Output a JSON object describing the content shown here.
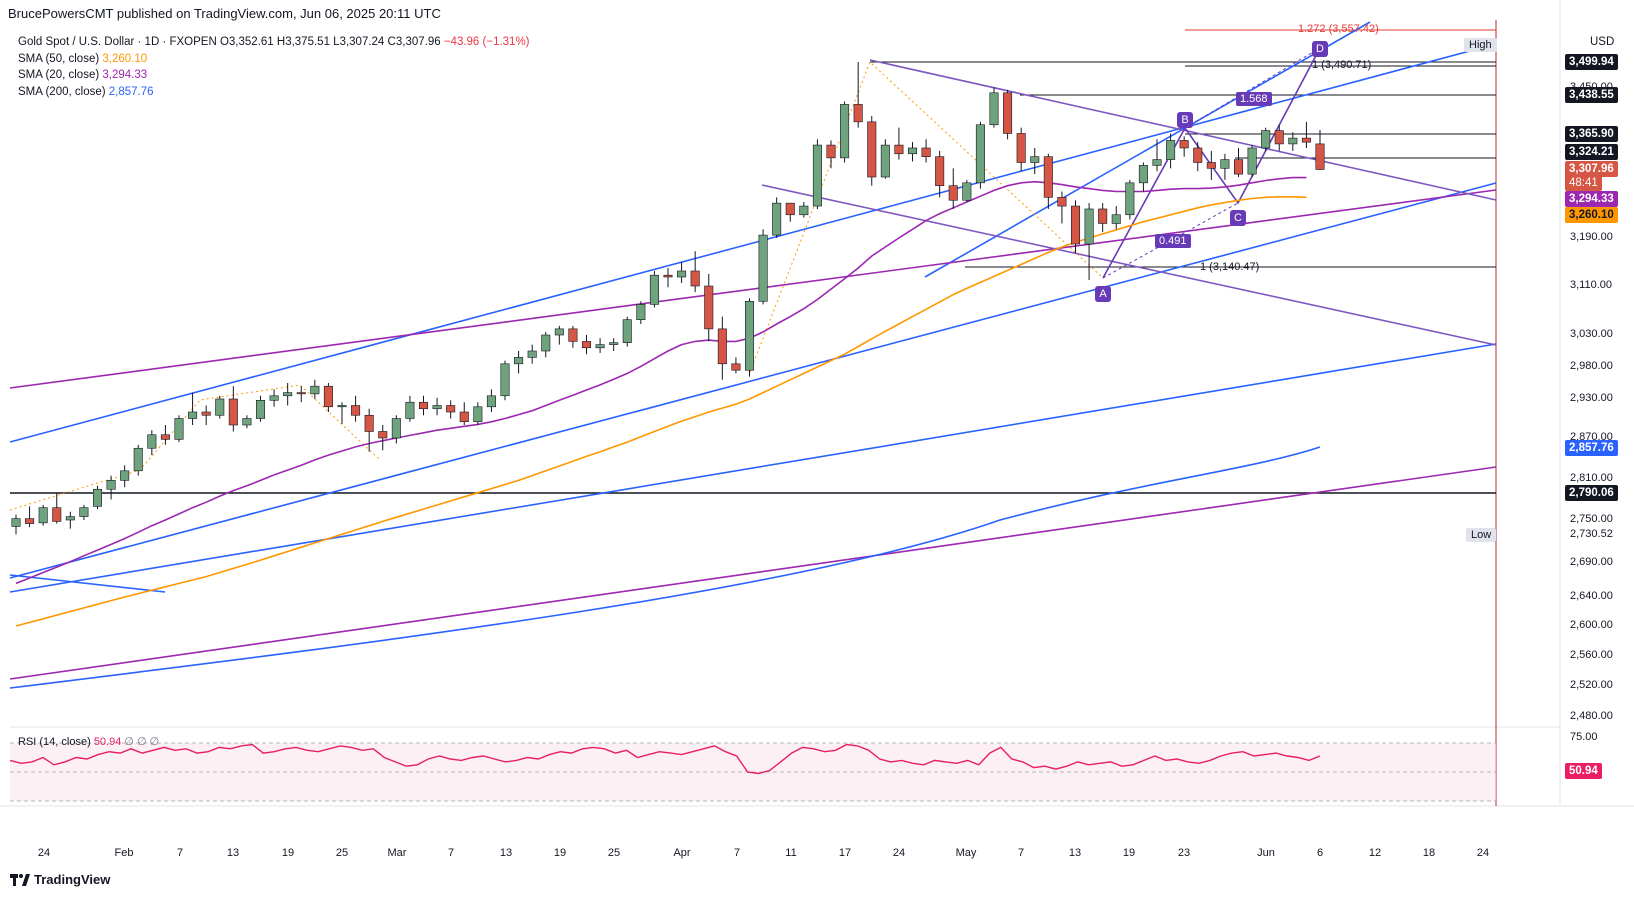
{
  "header": {
    "publisher": "BrucePowersCMT published on TradingView.com, Jun 06, 2025 20:11 UTC"
  },
  "legend": {
    "symbol": "Gold Spot / U.S. Dollar · 1D · FXOPEN",
    "open": "O3,352.61",
    "high": "H3,375.51",
    "low": "L3,307.24",
    "close": "C3,307.96",
    "change": "−43.96 (−1.31%)",
    "sma50_label": "SMA (50, close)",
    "sma50_value": "3,260.10",
    "sma20_label": "SMA (20, close)",
    "sma20_value": "3,294.33",
    "sma200_label": "SMA (200, close)",
    "sma200_value": "2,857.76"
  },
  "currency": "USD",
  "high_chip": "High",
  "low_chip": "Low",
  "low_value": "2,730.52",
  "price_axis_ticks": [
    "3,190.00",
    "3,110.00",
    "3,030.00",
    "2,980.00",
    "2,930.00",
    "2,870.00",
    "2,810.00",
    "2,750.00",
    "2,690.00",
    "2,640.00",
    "2,600.00",
    "2,560.00",
    "2,520.00",
    "2,480.00",
    "3,450.00"
  ],
  "price_boxes": {
    "p3499": "3,499.94",
    "p3438": "3,438.55",
    "p3365": "3,365.90",
    "p3324": "3,324.21",
    "last": "3,307.96",
    "countdown": "48:41",
    "sma20": "3,294.33",
    "sma50": "3,260.10",
    "sma200": "2,857.76",
    "p2790": "2,790.06"
  },
  "rsi": {
    "label": "RSI (14, close)",
    "value": "50.94",
    "placeholders": "∅ ∅ ∅",
    "tick75": "75.00",
    "box": "50.94",
    "upper": 70,
    "lower": 30,
    "ymin": 20,
    "ymax": 85,
    "values": [
      58,
      56,
      57,
      60,
      55,
      57,
      60,
      59,
      62,
      64,
      63,
      66,
      63,
      65,
      67,
      65,
      66,
      63,
      64,
      67,
      66,
      68,
      69,
      63,
      64,
      66,
      67,
      65,
      64,
      66,
      68,
      67,
      65,
      66,
      60,
      57,
      54,
      55,
      59,
      61,
      59,
      58,
      60,
      61,
      59,
      57,
      58,
      60,
      59,
      62,
      64,
      63,
      66,
      67,
      66,
      63,
      65,
      60,
      62,
      64,
      63,
      62,
      64,
      66,
      68,
      64,
      61,
      50,
      49,
      51,
      57,
      63,
      67,
      66,
      64,
      65,
      69,
      68,
      65,
      59,
      57,
      58,
      56,
      55,
      58,
      57,
      56,
      58,
      55,
      63,
      67,
      59,
      57,
      53,
      54,
      52,
      54,
      57,
      55,
      56,
      57,
      54,
      55,
      58,
      61,
      58,
      59,
      57,
      56,
      58,
      61,
      63,
      64,
      61,
      62,
      63,
      61,
      60,
      58,
      61
    ]
  },
  "fib": {
    "level_1272": "1.272 (3,557.42)",
    "level_1": "1 (3,140.47)",
    "level_1b": "1 (3,490.71)",
    "ratio1": "1.568",
    "ratio2": "0.491"
  },
  "wave_labels": {
    "A": "A",
    "B": "B",
    "C": "C",
    "D": "D"
  },
  "x_axis": [
    "24",
    "Feb",
    "7",
    "13",
    "19",
    "25",
    "Mar",
    "7",
    "13",
    "19",
    "25",
    "Apr",
    "7",
    "11",
    "17",
    "24",
    "May",
    "7",
    "13",
    "19",
    "23",
    "Jun",
    "6",
    "12",
    "18",
    "24"
  ],
  "footer": {
    "brand": "TradingView"
  },
  "colors": {
    "up": "#6fa37d",
    "down": "#d65646",
    "sma20": "#9c27b0",
    "sma50": "#ff9800",
    "sma200": "#2962ff",
    "trend_purple": "#7e57c2",
    "rsi": "#e91e63"
  },
  "chart_data": {
    "type": "candlestick",
    "title": "Gold Spot / U.S. Dollar · 1D · FXOPEN",
    "ylim": [
      2460,
      3580
    ],
    "candles": [
      [
        2741,
        2758,
        2730,
        2752
      ],
      [
        2752,
        2770,
        2740,
        2745
      ],
      [
        2746,
        2772,
        2742,
        2768
      ],
      [
        2768,
        2790,
        2745,
        2748
      ],
      [
        2750,
        2762,
        2738,
        2755
      ],
      [
        2755,
        2772,
        2750,
        2768
      ],
      [
        2770,
        2800,
        2766,
        2795
      ],
      [
        2795,
        2815,
        2780,
        2808
      ],
      [
        2808,
        2830,
        2798,
        2822
      ],
      [
        2822,
        2860,
        2815,
        2855
      ],
      [
        2855,
        2882,
        2845,
        2875
      ],
      [
        2875,
        2890,
        2860,
        2868
      ],
      [
        2868,
        2905,
        2864,
        2900
      ],
      [
        2900,
        2940,
        2890,
        2910
      ],
      [
        2910,
        2920,
        2890,
        2905
      ],
      [
        2905,
        2935,
        2900,
        2930
      ],
      [
        2930,
        2950,
        2880,
        2890
      ],
      [
        2890,
        2905,
        2885,
        2900
      ],
      [
        2900,
        2935,
        2895,
        2928
      ],
      [
        2928,
        2945,
        2918,
        2935
      ],
      [
        2935,
        2955,
        2920,
        2940
      ],
      [
        2940,
        2950,
        2925,
        2938
      ],
      [
        2938,
        2960,
        2930,
        2950
      ],
      [
        2950,
        2955,
        2910,
        2918
      ],
      [
        2918,
        2925,
        2892,
        2920
      ],
      [
        2920,
        2935,
        2895,
        2905
      ],
      [
        2905,
        2915,
        2850,
        2880
      ],
      [
        2880,
        2890,
        2852,
        2870
      ],
      [
        2870,
        2905,
        2862,
        2900
      ],
      [
        2900,
        2935,
        2895,
        2925
      ],
      [
        2925,
        2935,
        2905,
        2915
      ],
      [
        2915,
        2932,
        2905,
        2920
      ],
      [
        2920,
        2928,
        2900,
        2910
      ],
      [
        2910,
        2925,
        2890,
        2895
      ],
      [
        2895,
        2925,
        2890,
        2918
      ],
      [
        2918,
        2945,
        2910,
        2935
      ],
      [
        2935,
        2990,
        2928,
        2985
      ],
      [
        2985,
        3005,
        2970,
        2995
      ],
      [
        2995,
        3015,
        2985,
        3005
      ],
      [
        3005,
        3035,
        2995,
        3030
      ],
      [
        3030,
        3045,
        3015,
        3040
      ],
      [
        3040,
        3045,
        3010,
        3020
      ],
      [
        3020,
        3030,
        3000,
        3010
      ],
      [
        3010,
        3025,
        3002,
        3015
      ],
      [
        3015,
        3025,
        3005,
        3018
      ],
      [
        3018,
        3060,
        3012,
        3055
      ],
      [
        3055,
        3085,
        3048,
        3080
      ],
      [
        3080,
        3135,
        3075,
        3128
      ],
      [
        3128,
        3140,
        3108,
        3125
      ],
      [
        3125,
        3150,
        3115,
        3135
      ],
      [
        3135,
        3168,
        3100,
        3110
      ],
      [
        3110,
        3130,
        3020,
        3040
      ],
      [
        3040,
        3060,
        2960,
        2985
      ],
      [
        2985,
        2995,
        2970,
        2975
      ],
      [
        2975,
        3090,
        2965,
        3085
      ],
      [
        3085,
        3205,
        3080,
        3195
      ],
      [
        3195,
        3260,
        3190,
        3250
      ],
      [
        3250,
        3245,
        3218,
        3230
      ],
      [
        3230,
        3252,
        3225,
        3245
      ],
      [
        3245,
        3360,
        3240,
        3350
      ],
      [
        3350,
        3358,
        3310,
        3328
      ],
      [
        3328,
        3425,
        3320,
        3420
      ],
      [
        3420,
        3500,
        3380,
        3390
      ],
      [
        3390,
        3400,
        3280,
        3295
      ],
      [
        3295,
        3360,
        3292,
        3350
      ],
      [
        3350,
        3380,
        3325,
        3335
      ],
      [
        3335,
        3355,
        3322,
        3345
      ],
      [
        3345,
        3360,
        3320,
        3330
      ],
      [
        3330,
        3340,
        3260,
        3280
      ],
      [
        3280,
        3310,
        3240,
        3255
      ],
      [
        3255,
        3290,
        3252,
        3285
      ],
      [
        3285,
        3390,
        3275,
        3385
      ],
      [
        3385,
        3450,
        3380,
        3440
      ],
      [
        3440,
        3445,
        3360,
        3370
      ],
      [
        3370,
        3380,
        3305,
        3320
      ],
      [
        3320,
        3345,
        3300,
        3330
      ],
      [
        3330,
        3335,
        3240,
        3260
      ],
      [
        3260,
        3270,
        3215,
        3245
      ],
      [
        3245,
        3255,
        3165,
        3180
      ],
      [
        3180,
        3250,
        3120,
        3240
      ],
      [
        3240,
        3250,
        3200,
        3215
      ],
      [
        3215,
        3245,
        3205,
        3230
      ],
      [
        3230,
        3290,
        3222,
        3285
      ],
      [
        3285,
        3320,
        3270,
        3315
      ],
      [
        3315,
        3360,
        3305,
        3325
      ],
      [
        3325,
        3370,
        3310,
        3358
      ],
      [
        3358,
        3365,
        3330,
        3345
      ],
      [
        3345,
        3355,
        3305,
        3320
      ],
      [
        3320,
        3340,
        3290,
        3310
      ],
      [
        3310,
        3335,
        3290,
        3325
      ],
      [
        3325,
        3345,
        3295,
        3300
      ],
      [
        3300,
        3350,
        3295,
        3345
      ],
      [
        3345,
        3380,
        3340,
        3375
      ],
      [
        3375,
        3385,
        3340,
        3352
      ],
      [
        3352,
        3372,
        3340,
        3362
      ],
      [
        3362,
        3390,
        3345,
        3355
      ],
      [
        3352,
        3376,
        3307,
        3308
      ]
    ],
    "sma20": [
      2660,
      2668,
      2676,
      2684,
      2692,
      2700,
      2708,
      2716,
      2724,
      2733,
      2742,
      2750,
      2759,
      2768,
      2776,
      2785,
      2793,
      2800,
      2808,
      2816,
      2823,
      2830,
      2838,
      2845,
      2851,
      2857,
      2862,
      2866,
      2870,
      2874,
      2878,
      2882,
      2885,
      2888,
      2891,
      2895,
      2900,
      2906,
      2912,
      2920,
      2928,
      2936,
      2944,
      2952,
      2961,
      2970,
      2981,
      2993,
      3005,
      3015,
      3020,
      3022,
      3020,
      3020,
      3025,
      3035,
      3048,
      3060,
      3073,
      3088,
      3105,
      3122,
      3140,
      3160,
      3175,
      3190,
      3205,
      3220,
      3232,
      3242,
      3252,
      3262,
      3272,
      3280,
      3285,
      3287,
      3285,
      3282,
      3278,
      3275,
      3272,
      3270,
      3270,
      3270,
      3272,
      3274,
      3275,
      3275,
      3276,
      3278,
      3281,
      3285,
      3289,
      3292,
      3294,
      3294
    ],
    "sma50": [
      2600,
      2605,
      2610,
      2615,
      2620,
      2625,
      2630,
      2635,
      2640,
      2645,
      2650,
      2655,
      2660,
      2665,
      2670,
      2676,
      2682,
      2688,
      2694,
      2700,
      2706,
      2712,
      2718,
      2724,
      2730,
      2736,
      2742,
      2748,
      2754,
      2760,
      2766,
      2772,
      2778,
      2784,
      2790,
      2796,
      2802,
      2808,
      2815,
      2822,
      2829,
      2836,
      2843,
      2850,
      2857,
      2864,
      2872,
      2880,
      2888,
      2896,
      2903,
      2910,
      2916,
      2922,
      2930,
      2940,
      2950,
      2960,
      2970,
      2980,
      2990,
      3000,
      3012,
      3024,
      3036,
      3048,
      3060,
      3072,
      3084,
      3096,
      3106,
      3116,
      3126,
      3136,
      3146,
      3156,
      3166,
      3175,
      3183,
      3190,
      3197,
      3204,
      3211,
      3218,
      3224,
      3230,
      3236,
      3242,
      3247,
      3251,
      3255,
      3258,
      3260,
      3261,
      3261,
      3260
    ],
    "x_axis_labels": [
      "24",
      "Feb",
      "7",
      "13",
      "19",
      "25",
      "Mar",
      "7",
      "13",
      "19",
      "25",
      "Apr",
      "7",
      "11",
      "17",
      "24",
      "May",
      "7",
      "13",
      "19",
      "23",
      "Jun",
      "6",
      "12",
      "18",
      "24"
    ]
  }
}
